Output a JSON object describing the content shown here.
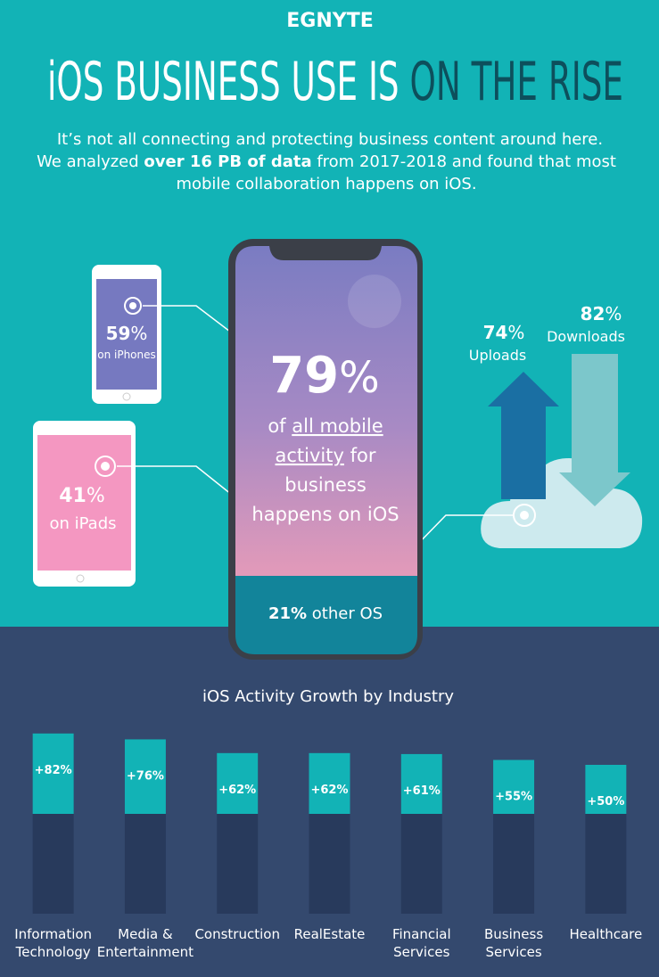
{
  "logo": "EGNYTE",
  "title": [
    "iOS BUSINESS USE IS",
    "ON THE RISE"
  ],
  "intro": [
    "It’s not all connecting and protecting business content around here.",
    "We analyzed ",
    "over 16 PB of data",
    " from 2017-2018 and found that most",
    "mobile collaboration happens on iOS."
  ],
  "iphones": {
    "value": 59,
    "unit": "%",
    "label": "on iPhones"
  },
  "ipads": {
    "value": 41,
    "unit": "%",
    "label": "on iPads"
  },
  "ios": {
    "value": 79,
    "unit": "%",
    "lines": [
      "of ",
      "all mobile",
      "activity",
      " for",
      "business",
      "happens on iOS"
    ]
  },
  "other": {
    "value": 21,
    "unit": "%",
    "label": "other OS"
  },
  "uploads": {
    "value": 74,
    "unit": "%",
    "label": "Uploads"
  },
  "downloads": {
    "value": 82,
    "unit": "%",
    "label": "Downloads"
  },
  "chart_data": {
    "type": "bar",
    "title": "iOS Activity Growth by Industry",
    "categories": [
      [
        "Information",
        "Technology"
      ],
      [
        "Media &",
        "Entertainment"
      ],
      [
        "Construction"
      ],
      [
        "RealEstate"
      ],
      [
        "Financial",
        "Services"
      ],
      [
        "Business",
        "Services"
      ],
      [
        "Healthcare"
      ]
    ],
    "values": [
      82,
      76,
      62,
      62,
      61,
      55,
      50
    ],
    "value_labels": [
      "+82%",
      "+76%",
      "+62%",
      "+62%",
      "+61%",
      "+55%",
      "+50%"
    ],
    "color": "#12b3b6"
  }
}
